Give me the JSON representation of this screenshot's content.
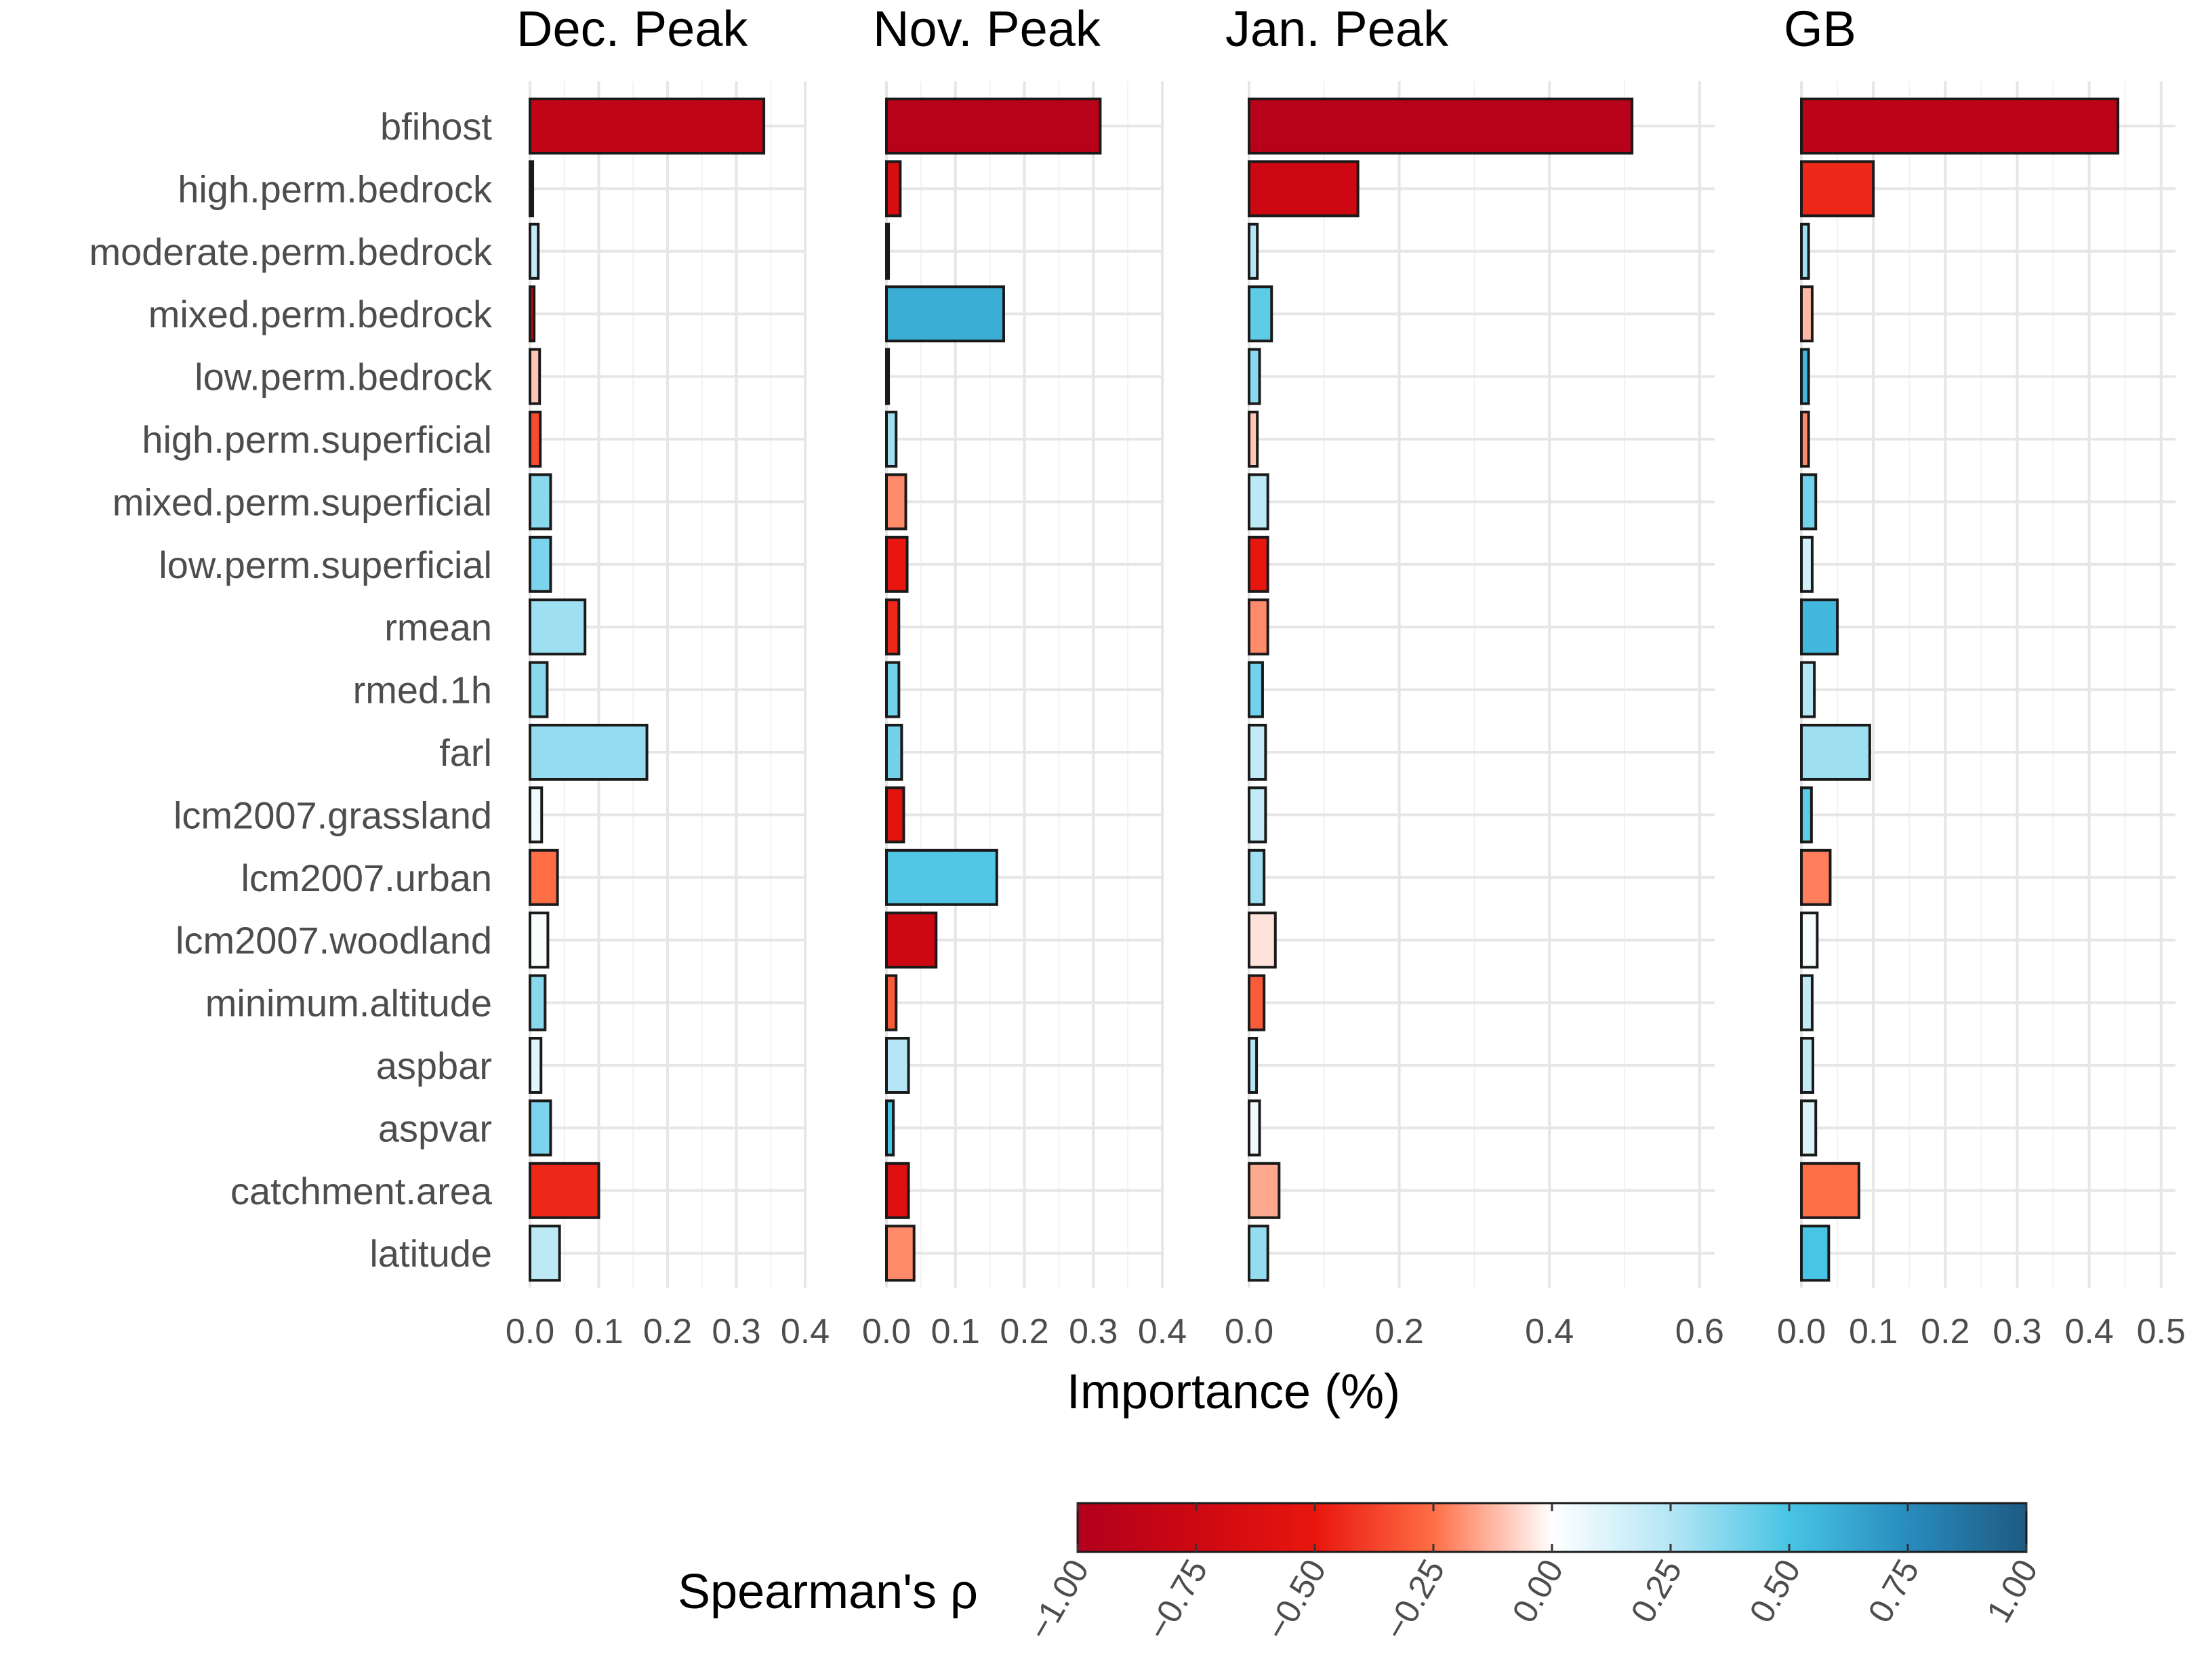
{
  "chart_data": {
    "type": "bar",
    "orientation": "horizontal",
    "xlabel": "Importance (%)",
    "legend": {
      "title": "Spearman's ρ",
      "range": [
        -1,
        1
      ],
      "ticks": [
        "-1.00",
        "-0.75",
        "-0.50",
        "-0.25",
        "0.00",
        "0.25",
        "0.50",
        "0.75",
        "1.00"
      ],
      "colors": [
        "#b2001c",
        "#e00f0f",
        "#ff6a3d",
        "#ffffff",
        "#48c4e4",
        "#1e6a8c"
      ],
      "placement": "bottom-right"
    },
    "categories": [
      "bfihost",
      "high.perm.bedrock",
      "moderate.perm.bedrock",
      "mixed.perm.bedrock",
      "low.perm.bedrock",
      "high.perm.superficial",
      "mixed.perm.superficial",
      "low.perm.superficial",
      "rmean",
      "rmed.1h",
      "farl",
      "lcm2007.grassland",
      "lcm2007.urban",
      "lcm2007.woodland",
      "minimum.altitude",
      "aspbar",
      "aspvar",
      "catchment.area",
      "latitude"
    ],
    "panels": [
      {
        "title": "Dec. Peak",
        "xlim": [
          0,
          0.4
        ],
        "ticks": [
          "0.0",
          "0.1",
          "0.2",
          "0.3",
          "0.4"
        ],
        "tick_values": [
          0,
          0.1,
          0.2,
          0.3,
          0.4
        ],
        "values": [
          0.34,
          0.004,
          0.012,
          0.006,
          0.014,
          0.015,
          0.03,
          0.03,
          0.08,
          0.025,
          0.17,
          0.017,
          0.04,
          0.026,
          0.022,
          0.016,
          0.03,
          0.1,
          0.043
        ],
        "rho": [
          -0.85,
          -0.7,
          0.2,
          -0.8,
          -0.1,
          -0.35,
          0.35,
          0.38,
          0.3,
          0.35,
          0.32,
          0.05,
          -0.25,
          0.02,
          0.35,
          0.1,
          0.38,
          -0.45,
          0.22
        ]
      },
      {
        "title": "Nov. Peak",
        "xlim": [
          0,
          0.4
        ],
        "ticks": [
          "0.0",
          "0.1",
          "0.2",
          "0.3",
          "0.4"
        ],
        "tick_values": [
          0,
          0.1,
          0.2,
          0.3,
          0.4
        ],
        "values": [
          0.31,
          0.02,
          0.003,
          0.17,
          0.003,
          0.014,
          0.028,
          0.03,
          0.018,
          0.018,
          0.022,
          0.025,
          0.16,
          0.072,
          0.014,
          0.032,
          0.01,
          0.032,
          0.04
        ],
        "rho": [
          -0.95,
          -0.65,
          -0.7,
          0.6,
          -0.5,
          0.3,
          -0.2,
          -0.5,
          -0.45,
          0.4,
          0.4,
          -0.55,
          0.48,
          -0.75,
          -0.3,
          0.25,
          0.5,
          -0.6,
          -0.2
        ]
      },
      {
        "title": "Jan. Peak",
        "xlim": [
          0,
          0.62
        ],
        "ticks": [
          "0.0",
          "0.2",
          "0.4",
          "0.6"
        ],
        "tick_values": [
          0,
          0.2,
          0.4,
          0.6
        ],
        "values": [
          0.51,
          0.145,
          0.011,
          0.03,
          0.014,
          0.011,
          0.025,
          0.025,
          0.025,
          0.018,
          0.022,
          0.022,
          0.02,
          0.035,
          0.02,
          0.01,
          0.014,
          0.04,
          0.025
        ],
        "rho": [
          -0.95,
          -0.75,
          0.25,
          0.45,
          0.35,
          -0.1,
          0.22,
          -0.5,
          -0.2,
          0.4,
          0.2,
          0.2,
          0.3,
          -0.05,
          -0.3,
          0.25,
          0.05,
          -0.15,
          0.32
        ]
      },
      {
        "title": "GB",
        "xlim": [
          0,
          0.52
        ],
        "ticks": [
          "0.0",
          "0.1",
          "0.2",
          "0.3",
          "0.4",
          "0.5"
        ],
        "tick_values": [
          0,
          0.1,
          0.2,
          0.3,
          0.4,
          0.5
        ],
        "values": [
          0.44,
          0.1,
          0.01,
          0.015,
          0.01,
          0.01,
          0.02,
          0.015,
          0.05,
          0.018,
          0.095,
          0.014,
          0.04,
          0.022,
          0.015,
          0.016,
          0.02,
          0.08,
          0.038
        ],
        "rho": [
          -0.9,
          -0.45,
          0.3,
          -0.12,
          0.55,
          -0.2,
          0.4,
          0.15,
          0.55,
          0.25,
          0.3,
          0.45,
          -0.22,
          0.03,
          0.2,
          0.2,
          0.12,
          -0.25,
          0.5
        ]
      }
    ]
  }
}
